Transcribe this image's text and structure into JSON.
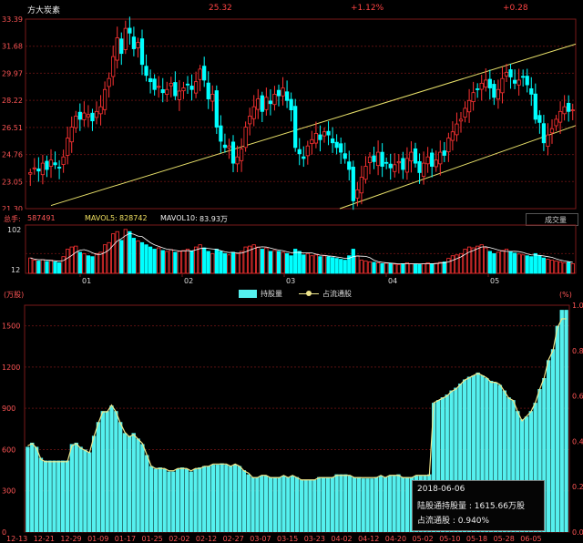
{
  "header": {
    "name": "方大炭素",
    "price": "25.32",
    "change_pct": "+1.12%",
    "change": "+0.28"
  },
  "colors": {
    "up": "#ff3333",
    "down": "#00ffff",
    "hold_fill": "#55f0ee",
    "ratio_line": "#f0e68c",
    "grid": "#5a1010",
    "channel": "#e8e06a",
    "ma5": "#ffffff",
    "ma10": "#e8c84a"
  },
  "volume_bar": {
    "label": "总手:",
    "value": "587491",
    "ma5_label": "MAVOL5:",
    "ma5_value": "828742",
    "ma10_label": "MAVOL10:",
    "ma10_value": "83.93万",
    "dropdown": "成交量"
  },
  "legend": {
    "hold": "持股量",
    "ratio": "占流通股"
  },
  "tooltip": {
    "date": "2018-06-06",
    "hold_line": "陆股通持股量 : 1615.66万股",
    "ratio_line": "占流通股 : 0.940%"
  },
  "chart_data": [
    {
      "type": "candlestick",
      "title": "方大炭素",
      "y_ticks": [
        "33.39",
        "31.68",
        "29.97",
        "28.22",
        "26.51",
        "24.76",
        "23.05",
        "21.30"
      ],
      "ylim": [
        21.3,
        33.39
      ],
      "x_ticks": [
        "01",
        "02",
        "03",
        "04",
        "05",
        "06"
      ],
      "closes": [
        23.6,
        23.9,
        23.7,
        24.2,
        23.8,
        24.4,
        24.1,
        23.9,
        24.6,
        25.8,
        26.5,
        27.2,
        27.0,
        27.4,
        27.3,
        26.9,
        27.5,
        27.8,
        28.9,
        29.6,
        31.0,
        32.2,
        31.2,
        32.8,
        32.5,
        31.5,
        31.9,
        30.5,
        29.8,
        29.4,
        28.9,
        29.1,
        28.7,
        28.9,
        29.3,
        28.5,
        28.8,
        29.0,
        29.2,
        28.9,
        29.4,
        30.2,
        29.5,
        28.3,
        28.6,
        26.5,
        25.6,
        25.2,
        25.3,
        24.2,
        24.6,
        25.1,
        26.5,
        27.2,
        27.8,
        28.3,
        27.5,
        28.4,
        28.0,
        28.6,
        28.5,
        29.0,
        28.2,
        27.6,
        25.2,
        24.8,
        24.5,
        25.3,
        25.7,
        26.1,
        25.7,
        26.2,
        26.0,
        25.5,
        25.2,
        24.9,
        24.5,
        23.8,
        21.8,
        22.5,
        23.3,
        24.0,
        24.6,
        24.3,
        24.9,
        24.0,
        24.2,
        23.9,
        24.1,
        24.3,
        23.8,
        24.5,
        24.9,
        24.2,
        23.6,
        24.2,
        24.6,
        24.0,
        24.4,
        24.9,
        24.7,
        25.8,
        26.2,
        26.7,
        27.0,
        27.7,
        28.2,
        28.7,
        28.9,
        29.3,
        29.5,
        29.0,
        28.4,
        28.9,
        29.6,
        30.0,
        29.7,
        29.3,
        29.5,
        29.7,
        29.2,
        28.6,
        27.0,
        26.8,
        25.5,
        26.0,
        26.4,
        27.0,
        27.5,
        27.8,
        27.5,
        27.6
      ],
      "volume_ticks": [
        "102",
        "12"
      ],
      "volumes": [
        35,
        30,
        28,
        31,
        27,
        30,
        26,
        24,
        38,
        55,
        60,
        62,
        48,
        45,
        40,
        38,
        45,
        48,
        65,
        70,
        90,
        95,
        75,
        100,
        95,
        80,
        74,
        70,
        65,
        60,
        55,
        58,
        52,
        50,
        54,
        48,
        50,
        52,
        55,
        50,
        60,
        65,
        58,
        50,
        45,
        55,
        50,
        45,
        42,
        48,
        45,
        50,
        60,
        62,
        65,
        60,
        55,
        58,
        50,
        52,
        50,
        48,
        45,
        40,
        55,
        50,
        42,
        45,
        40,
        42,
        38,
        40,
        38,
        36,
        34,
        32,
        30,
        40,
        55,
        40,
        30,
        28,
        26,
        25,
        24,
        22,
        23,
        22,
        21,
        20,
        22,
        24,
        22,
        21,
        20,
        22,
        24,
        22,
        23,
        25,
        26,
        34,
        40,
        42,
        45,
        55,
        60,
        58,
        62,
        65,
        58,
        50,
        45,
        48,
        52,
        55,
        50,
        46,
        44,
        42,
        40,
        38,
        45,
        40,
        35,
        32,
        30,
        28,
        26,
        24,
        25,
        22
      ]
    },
    {
      "type": "bar",
      "title": "",
      "y_label": "(万股)",
      "y2_label": "(%)",
      "y_ticks": [
        "1500",
        "1200",
        "900",
        "600",
        "300",
        "0"
      ],
      "y2_ticks": [
        "1.00",
        "0.80",
        "0.60",
        "0.40",
        "0.20",
        "0.00"
      ],
      "ylim": [
        0,
        1650
      ],
      "y2lim": [
        0,
        1.0
      ],
      "x_ticks": [
        "12-13",
        "12-21",
        "12-29",
        "01-09",
        "01-17",
        "01-25",
        "02-02",
        "02-12",
        "02-27",
        "03-07",
        "03-15",
        "03-23",
        "04-02",
        "04-12",
        "04-20",
        "05-02",
        "05-10",
        "05-18",
        "05-28",
        "06-05"
      ],
      "holdings": [
        620,
        650,
        620,
        540,
        520,
        520,
        520,
        520,
        520,
        520,
        640,
        650,
        620,
        600,
        580,
        700,
        800,
        880,
        880,
        920,
        880,
        800,
        720,
        700,
        720,
        680,
        640,
        560,
        480,
        460,
        470,
        460,
        440,
        440,
        460,
        470,
        460,
        440,
        460,
        470,
        480,
        480,
        490,
        490,
        500,
        490,
        480,
        490,
        480,
        450,
        420,
        400,
        400,
        410,
        410,
        400,
        400,
        400,
        410,
        400,
        410,
        400,
        380,
        380,
        380,
        380,
        400,
        400,
        400,
        400,
        420,
        420,
        420,
        410,
        400,
        400,
        390,
        390,
        390,
        400,
        410,
        400,
        410,
        410,
        420,
        400,
        400,
        400,
        410,
        410,
        410,
        420,
        940,
        960,
        980,
        1000,
        1030,
        1050,
        1080,
        1110,
        1130,
        1140,
        1160,
        1140,
        1120,
        1100,
        1090,
        1070,
        1030,
        980,
        960,
        880,
        820,
        840,
        880,
        940,
        1040,
        1120,
        1250,
        1330,
        1500,
        1616,
        1616
      ],
      "ratio": [
        0.38,
        0.39,
        0.37,
        0.32,
        0.31,
        0.31,
        0.31,
        0.31,
        0.31,
        0.31,
        0.38,
        0.39,
        0.37,
        0.36,
        0.35,
        0.42,
        0.48,
        0.53,
        0.53,
        0.56,
        0.53,
        0.48,
        0.44,
        0.42,
        0.43,
        0.41,
        0.39,
        0.34,
        0.29,
        0.28,
        0.28,
        0.28,
        0.27,
        0.27,
        0.28,
        0.28,
        0.28,
        0.27,
        0.28,
        0.28,
        0.29,
        0.29,
        0.3,
        0.3,
        0.3,
        0.3,
        0.29,
        0.3,
        0.29,
        0.27,
        0.26,
        0.24,
        0.24,
        0.25,
        0.25,
        0.24,
        0.24,
        0.24,
        0.25,
        0.24,
        0.25,
        0.24,
        0.23,
        0.23,
        0.23,
        0.23,
        0.24,
        0.24,
        0.24,
        0.24,
        0.25,
        0.25,
        0.25,
        0.25,
        0.24,
        0.24,
        0.24,
        0.24,
        0.24,
        0.24,
        0.25,
        0.24,
        0.25,
        0.25,
        0.25,
        0.24,
        0.24,
        0.24,
        0.25,
        0.25,
        0.25,
        0.25,
        0.57,
        0.58,
        0.59,
        0.6,
        0.62,
        0.63,
        0.65,
        0.67,
        0.68,
        0.69,
        0.7,
        0.69,
        0.68,
        0.66,
        0.66,
        0.65,
        0.62,
        0.59,
        0.58,
        0.53,
        0.49,
        0.51,
        0.53,
        0.57,
        0.63,
        0.68,
        0.76,
        0.8,
        0.9,
        0.94,
        0.94
      ]
    }
  ]
}
